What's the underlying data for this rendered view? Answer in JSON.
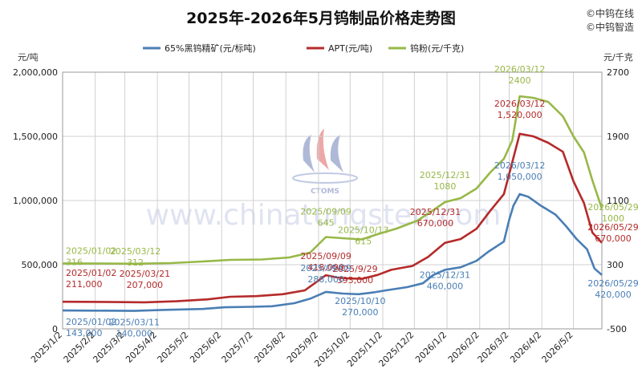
{
  "chart_data": {
    "type": "line",
    "title": "2025年-2026年5月钨制品价格走势图",
    "watermark_lines": [
      "©中钨在线",
      "©中钨智造"
    ],
    "brand_site": "www.chinatungsten.com",
    "brand_logo_text": "CTOMS",
    "y_left_unit": "元/吨",
    "y_right_unit": "元/千克",
    "y_left_range": [
      0,
      2000000
    ],
    "y_left_ticks": [
      "0",
      "500,000",
      "1,000,000",
      "1,500,000",
      "2,000,000"
    ],
    "y_left_tick_values": [
      0,
      500000,
      1000000,
      1500000,
      2000000
    ],
    "y_right_range": [
      -500,
      2700
    ],
    "y_right_ticks": [
      "-500",
      "300",
      "1100",
      "1900",
      "2700"
    ],
    "y_right_tick_values": [
      -500,
      300,
      1100,
      1900,
      2700
    ],
    "x_range": [
      "2025-01-02",
      "2026-05-29"
    ],
    "x_ticks": [
      "2025/1/2",
      "2025/2/2",
      "2025/3/2",
      "2025/4/2",
      "2025/5/2",
      "2025/6/2",
      "2025/7/2",
      "2025/8/2",
      "2025/9/2",
      "2025/10/2",
      "2025/11/2",
      "2025/12/2",
      "2026/1/2",
      "2026/2/2",
      "2026/3/2",
      "2026/4/2",
      "2026/5/2"
    ],
    "x_tick_dates": [
      "2025-01-02",
      "2025-02-02",
      "2025-03-02",
      "2025-04-02",
      "2025-05-02",
      "2025-06-02",
      "2025-07-02",
      "2025-08-02",
      "2025-09-02",
      "2025-10-02",
      "2025-11-02",
      "2025-12-02",
      "2026-01-02",
      "2026-02-02",
      "2026-03-02",
      "2026-04-02",
      "2026-05-02"
    ],
    "grid": true,
    "legend_position": "top",
    "series": [
      {
        "name": "65%黑钨精矿(元/标吨)",
        "color": "#4a7eb5",
        "axis": "left",
        "points": [
          [
            "2025-01-02",
            143000
          ],
          [
            "2025-02-01",
            142000
          ],
          [
            "2025-03-11",
            140000
          ],
          [
            "2025-04-10",
            148000
          ],
          [
            "2025-05-15",
            155000
          ],
          [
            "2025-06-05",
            168000
          ],
          [
            "2025-07-01",
            172000
          ],
          [
            "2025-07-20",
            176000
          ],
          [
            "2025-08-10",
            200000
          ],
          [
            "2025-08-25",
            235000
          ],
          [
            "2025-09-09",
            288000
          ],
          [
            "2025-09-25",
            275000
          ],
          [
            "2025-10-10",
            270000
          ],
          [
            "2025-10-25",
            285000
          ],
          [
            "2025-11-05",
            300000
          ],
          [
            "2025-11-25",
            325000
          ],
          [
            "2025-12-10",
            355000
          ],
          [
            "2025-12-20",
            420000
          ],
          [
            "2025-12-31",
            460000
          ],
          [
            "2026-01-15",
            480000
          ],
          [
            "2026-01-30",
            530000
          ],
          [
            "2026-02-10",
            600000
          ],
          [
            "2026-02-25",
            680000
          ],
          [
            "2026-03-02",
            850000
          ],
          [
            "2026-03-06",
            960000
          ],
          [
            "2026-03-12",
            1050000
          ],
          [
            "2026-03-20",
            1030000
          ],
          [
            "2026-04-01",
            960000
          ],
          [
            "2026-04-15",
            890000
          ],
          [
            "2026-04-25",
            800000
          ],
          [
            "2026-05-05",
            700000
          ],
          [
            "2026-05-15",
            620000
          ],
          [
            "2026-05-22",
            470000
          ],
          [
            "2026-05-29",
            420000
          ]
        ]
      },
      {
        "name": "APT(元/吨)",
        "color": "#b52a2a",
        "axis": "left",
        "points": [
          [
            "2025-01-02",
            211000
          ],
          [
            "2025-02-10",
            210000
          ],
          [
            "2025-03-21",
            207000
          ],
          [
            "2025-04-20",
            215000
          ],
          [
            "2025-05-20",
            230000
          ],
          [
            "2025-06-10",
            250000
          ],
          [
            "2025-07-05",
            255000
          ],
          [
            "2025-07-30",
            270000
          ],
          [
            "2025-08-20",
            300000
          ],
          [
            "2025-09-09",
            418000
          ],
          [
            "2025-09-20",
            400000
          ],
          [
            "2025-09-29",
            393000
          ],
          [
            "2025-10-13",
            390000
          ],
          [
            "2025-10-28",
            420000
          ],
          [
            "2025-11-10",
            460000
          ],
          [
            "2025-11-30",
            490000
          ],
          [
            "2025-12-15",
            560000
          ],
          [
            "2025-12-31",
            670000
          ],
          [
            "2026-01-15",
            700000
          ],
          [
            "2026-01-30",
            780000
          ],
          [
            "2026-02-12",
            920000
          ],
          [
            "2026-02-25",
            1050000
          ],
          [
            "2026-03-05",
            1300000
          ],
          [
            "2026-03-12",
            1520000
          ],
          [
            "2026-03-25",
            1500000
          ],
          [
            "2026-04-08",
            1450000
          ],
          [
            "2026-04-22",
            1380000
          ],
          [
            "2026-05-02",
            1150000
          ],
          [
            "2026-05-12",
            980000
          ],
          [
            "2026-05-20",
            750000
          ],
          [
            "2026-05-29",
            670000
          ]
        ]
      },
      {
        "name": "钨粉(元/千克)",
        "color": "#97b847",
        "axis": "right",
        "points": [
          [
            "2025-01-02",
            316
          ],
          [
            "2025-02-10",
            314
          ],
          [
            "2025-03-12",
            312
          ],
          [
            "2025-04-15",
            320
          ],
          [
            "2025-05-15",
            340
          ],
          [
            "2025-06-10",
            360
          ],
          [
            "2025-07-10",
            365
          ],
          [
            "2025-08-05",
            390
          ],
          [
            "2025-08-25",
            450
          ],
          [
            "2025-09-09",
            645
          ],
          [
            "2025-09-25",
            630
          ],
          [
            "2025-10-13",
            615
          ],
          [
            "2025-10-28",
            680
          ],
          [
            "2025-11-15",
            750
          ],
          [
            "2025-12-05",
            850
          ],
          [
            "2025-12-20",
            980
          ],
          [
            "2025-12-31",
            1080
          ],
          [
            "2026-01-15",
            1130
          ],
          [
            "2026-01-30",
            1250
          ],
          [
            "2026-02-12",
            1450
          ],
          [
            "2026-02-25",
            1620
          ],
          [
            "2026-03-05",
            1850
          ],
          [
            "2026-03-12",
            2400
          ],
          [
            "2026-03-25",
            2380
          ],
          [
            "2026-04-08",
            2330
          ],
          [
            "2026-04-22",
            2150
          ],
          [
            "2026-05-02",
            1900
          ],
          [
            "2026-05-12",
            1700
          ],
          [
            "2026-05-20",
            1350
          ],
          [
            "2026-05-29",
            1000
          ]
        ]
      }
    ],
    "annotations": [
      {
        "lines": [
          "2025/01/02",
          "316"
        ],
        "color": "#97b847",
        "date": "2025-01-02",
        "axis": "right",
        "value": 316,
        "dx": 0,
        "dy": -12
      },
      {
        "lines": [
          "2025/03/12",
          "312"
        ],
        "color": "#97b847",
        "date": "2025-03-12",
        "axis": "right",
        "value": 312,
        "dx": 0,
        "dy": -12
      },
      {
        "lines": [
          "2025/09/09",
          "645"
        ],
        "color": "#97b847",
        "date": "2025-09-09",
        "axis": "right",
        "value": 645,
        "dx": 0,
        "dy": -28
      },
      {
        "lines": [
          "2025/10/13",
          "615"
        ],
        "color": "#97b847",
        "date": "2025-10-13",
        "axis": "right",
        "value": 615,
        "dx": 2,
        "dy": -8
      },
      {
        "lines": [
          "2025/12/31",
          "1080"
        ],
        "color": "#97b847",
        "date": "2025-12-31",
        "axis": "right",
        "value": 1080,
        "dx": 0,
        "dy": -30
      },
      {
        "lines": [
          "2026/03/12",
          "2400"
        ],
        "color": "#97b847",
        "date": "2026-03-12",
        "axis": "right",
        "value": 2400,
        "dx": 0,
        "dy": -30
      },
      {
        "lines": [
          "2026/05/29",
          "1000"
        ],
        "color": "#97b847",
        "date": "2026-05-29",
        "axis": "right",
        "value": 1000,
        "dx": 14,
        "dy": 2
      },
      {
        "lines": [
          "2025/01/02",
          "211,000"
        ],
        "color": "#b52a2a",
        "date": "2025-01-02",
        "axis": "left",
        "value": 211000,
        "dx": 0,
        "dy": -32
      },
      {
        "lines": [
          "2025/03/21",
          "207,000"
        ],
        "color": "#b52a2a",
        "date": "2025-03-21",
        "axis": "left",
        "value": 207000,
        "dx": 0,
        "dy": -32
      },
      {
        "lines": [
          "2025/09/09",
          "418,000"
        ],
        "color": "#b52a2a",
        "date": "2025-09-09",
        "axis": "left",
        "value": 418000,
        "dx": 0,
        "dy": -20
      },
      {
        "lines": [
          "2025/9/29",
          "393,000"
        ],
        "color": "#b52a2a",
        "date": "2025-09-29",
        "axis": "left",
        "value": 393000,
        "dx": 10,
        "dy": -8
      },
      {
        "lines": [
          "2025/12/31",
          "670,000"
        ],
        "color": "#b52a2a",
        "date": "2025-12-31",
        "axis": "left",
        "value": 670000,
        "dx": -12,
        "dy": -35
      },
      {
        "lines": [
          "2026/03/12",
          "1,520,000"
        ],
        "color": "#b52a2a",
        "date": "2026-03-12",
        "axis": "left",
        "value": 1520000,
        "dx": 0,
        "dy": -34
      },
      {
        "lines": [
          "2026/05/29",
          "670,000"
        ],
        "color": "#b52a2a",
        "date": "2026-05-29",
        "axis": "left",
        "value": 670000,
        "dx": 14,
        "dy": -16
      },
      {
        "lines": [
          "2025/01/02",
          "143,000"
        ],
        "color": "#4a7eb5",
        "date": "2025-01-02",
        "axis": "left",
        "value": 143000,
        "dx": 0,
        "dy": 18
      },
      {
        "lines": [
          "2025/03/11",
          "140,000"
        ],
        "color": "#4a7eb5",
        "date": "2025-03-11",
        "axis": "left",
        "value": 140000,
        "dx": 0,
        "dy": 18
      },
      {
        "lines": [
          "2025/09/09",
          "288,000"
        ],
        "color": "#4a7eb5",
        "date": "2025-09-09",
        "axis": "left",
        "value": 288000,
        "dx": 0,
        "dy": -26
      },
      {
        "lines": [
          "2025/10/10",
          "270,000"
        ],
        "color": "#4a7eb5",
        "date": "2025-10-10",
        "axis": "left",
        "value": 270000,
        "dx": 2,
        "dy": 12
      },
      {
        "lines": [
          "2025/12/31",
          "460,000"
        ],
        "color": "#4a7eb5",
        "date": "2025-12-31",
        "axis": "left",
        "value": 460000,
        "dx": 0,
        "dy": 10
      },
      {
        "lines": [
          "2026/03/12",
          "1,050,000"
        ],
        "color": "#4a7eb5",
        "date": "2026-03-12",
        "axis": "left",
        "value": 1050000,
        "dx": 0,
        "dy": -32
      },
      {
        "lines": [
          "2026/05/29",
          "420,000"
        ],
        "color": "#4a7eb5",
        "date": "2026-05-29",
        "axis": "left",
        "value": 420000,
        "dx": 14,
        "dy": 14
      }
    ]
  }
}
